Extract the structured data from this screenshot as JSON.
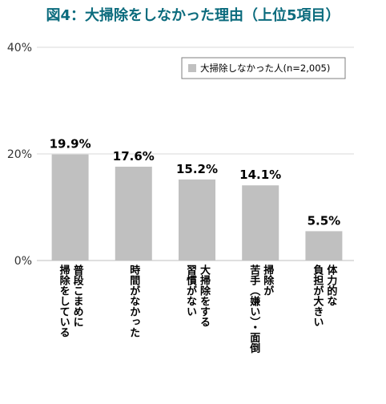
{
  "chart_data": {
    "type": "bar",
    "title": "図4：大掃除をしなかった理由（上位5項目）",
    "categories": [
      "普段こまめに\n掃除をしている",
      "時間がなかった",
      "大掃除をする\n習慣がない",
      "掃除が\n苦手（嫌い）・面倒",
      "体力的な\n負担が大きい"
    ],
    "series": [
      {
        "name": "大掃除しなかった人(n=2,005)",
        "values": [
          19.9,
          17.6,
          15.2,
          14.1,
          5.5
        ]
      }
    ],
    "data_labels": [
      "19.9%",
      "17.6%",
      "15.2%",
      "14.1%",
      "5.5%"
    ],
    "ylim": [
      0,
      40
    ],
    "yticks": [
      {
        "value": 0,
        "label": "0%"
      },
      {
        "value": 20,
        "label": "20%"
      },
      {
        "value": 40,
        "label": "40%"
      }
    ],
    "grid": true,
    "legend_position": "top-right",
    "colors": {
      "bar": "#c0c0c0",
      "grid": "#d9d9d9",
      "axis": "#bfbfbf",
      "title": "#0b6b7d"
    }
  }
}
